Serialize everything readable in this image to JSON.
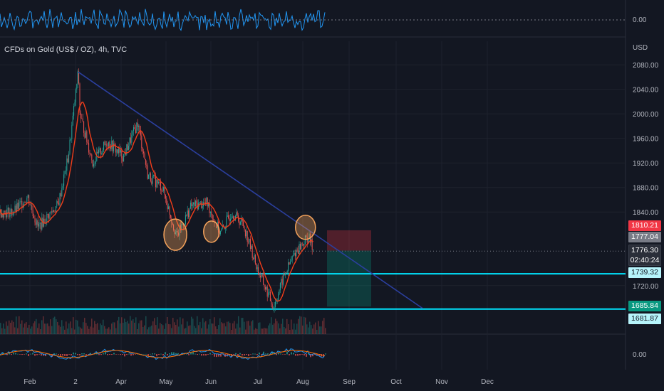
{
  "chart_title": "CFDs on Gold (US$ / OZ), 4h, TVC",
  "price_unit": "USD",
  "colors": {
    "background": "#131722",
    "grid": "#1e222d",
    "candle_up": "#26a69a",
    "candle_down": "#ef5350",
    "ma": "#f23d1a",
    "trendline": "#2b3f9e",
    "levels": "#00e5ff",
    "oscillator": "#2196f3",
    "circles": "#f5a35c"
  },
  "chart_data": {
    "type": "candlestick",
    "title": "CFDs on Gold (US$ / OZ), 4h, TVC",
    "ylabel": "USD",
    "ylim": [
      1660,
      2090
    ],
    "y_ticks": [
      "2080.00",
      "2040.00",
      "2000.00",
      "1960.00",
      "1920.00",
      "1880.00",
      "1840.00",
      "1720.00"
    ],
    "x_ticks": [
      "Feb",
      "2",
      "Apr",
      "May",
      "Jun",
      "Jul",
      "Aug",
      "Sep",
      "Oct",
      "Nov",
      "Dec"
    ],
    "price_path": [
      {
        "t": "Jan 22",
        "price": 1840
      },
      {
        "t": "Feb 1",
        "price": 1865
      },
      {
        "t": "Feb 8",
        "price": 1815
      },
      {
        "t": "Feb 22",
        "price": 1852
      },
      {
        "t": "Mar 1",
        "price": 1930
      },
      {
        "t": "Mar 8",
        "price": 2070
      },
      {
        "t": "Mar 9",
        "price": 2000
      },
      {
        "t": "Mar 18",
        "price": 1920
      },
      {
        "t": "Mar 28",
        "price": 1955
      },
      {
        "t": "Apr 8",
        "price": 1930
      },
      {
        "t": "Apr 18",
        "price": 1985
      },
      {
        "t": "Apr 25",
        "price": 1900
      },
      {
        "t": "May 5",
        "price": 1880
      },
      {
        "t": "May 15",
        "price": 1800
      },
      {
        "t": "May 25",
        "price": 1850
      },
      {
        "t": "Jun 5",
        "price": 1855
      },
      {
        "t": "Jun 14",
        "price": 1805
      },
      {
        "t": "Jun 22",
        "price": 1840
      },
      {
        "t": "Jun 30",
        "price": 1820
      },
      {
        "t": "Jul 10",
        "price": 1745
      },
      {
        "t": "Jul 21",
        "price": 1685
      },
      {
        "t": "Jul 28",
        "price": 1735
      },
      {
        "t": "Aug 5",
        "price": 1775
      },
      {
        "t": "Aug 14",
        "price": 1800
      },
      {
        "t": "Aug 18",
        "price": 1776.3
      }
    ],
    "trendline": {
      "from": {
        "t": "Mar 8",
        "price": 2068
      },
      "to": {
        "t": "Nov 1",
        "price": 1683
      }
    },
    "levels": [
      1739.32,
      1681.87
    ],
    "position": {
      "entry": 1777.04,
      "stop": 1810.21,
      "target": 1685.84
    },
    "circled_points": [
      {
        "t": "May 14",
        "price": 1803
      },
      {
        "t": "Jun 8",
        "price": 1808
      },
      {
        "t": "Aug 12",
        "price": 1815
      }
    ],
    "indicator_ticks": [
      "0.00"
    ],
    "last_price": 1776.3,
    "countdown": "02:40:24"
  },
  "labels": {
    "stop": "1810.21",
    "entry": "1777.04",
    "last": "1776.30",
    "countdown": "02:40:24",
    "level1": "1739.32",
    "target": "1685.84",
    "level2": "1681.87",
    "osc_top": "0.00",
    "osc_bottom": "0.00"
  }
}
